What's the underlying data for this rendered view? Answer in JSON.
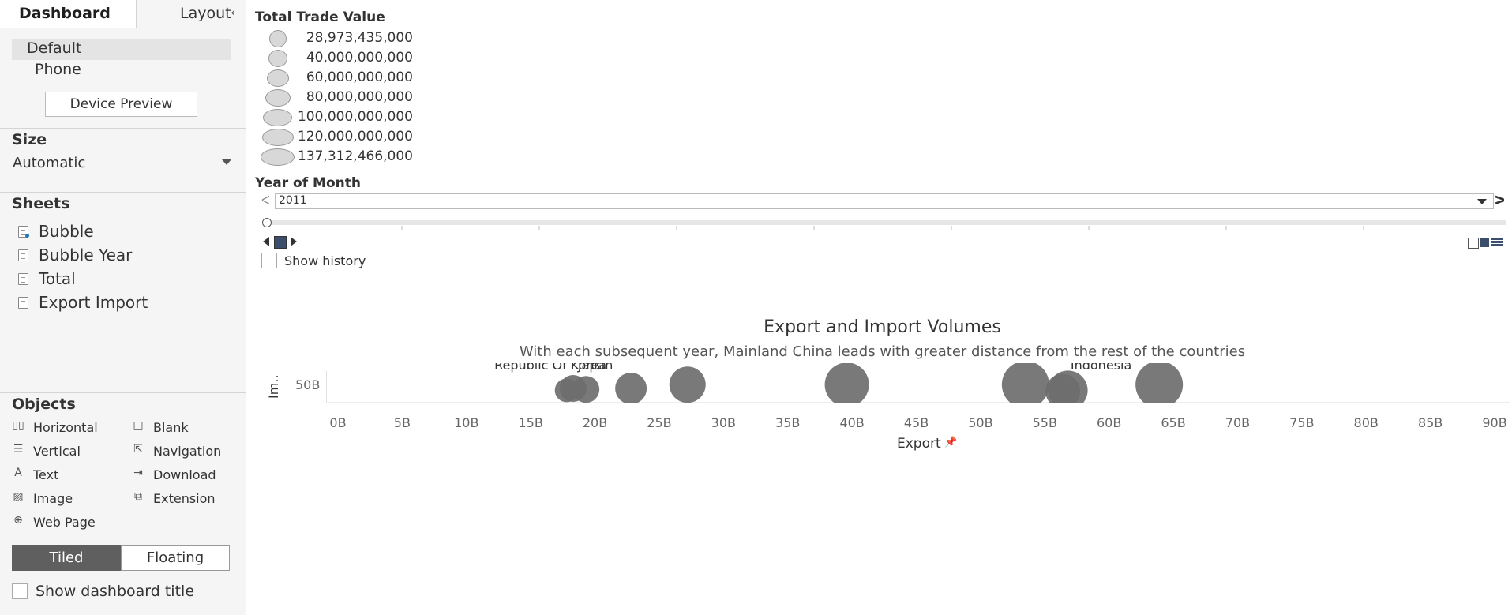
{
  "left_panel": {
    "tabs": {
      "dashboard": "Dashboard",
      "layout": "Layout"
    },
    "collapse_glyph": "‹",
    "device": {
      "default": "Default",
      "phone": "Phone",
      "preview_button": "Device Preview"
    },
    "size": {
      "heading": "Size",
      "value": "Automatic"
    },
    "sheets": {
      "heading": "Sheets",
      "items": [
        "Bubble",
        "Bubble Year",
        "Total",
        "Export Import"
      ]
    },
    "objects": {
      "heading": "Objects",
      "items": [
        {
          "label": "Horizontal",
          "icon": "horizontal-icon"
        },
        {
          "label": "Blank",
          "icon": "blank-icon"
        },
        {
          "label": "Vertical",
          "icon": "vertical-icon"
        },
        {
          "label": "Navigation",
          "icon": "navigation-icon"
        },
        {
          "label": "Text",
          "icon": "text-icon"
        },
        {
          "label": "Download",
          "icon": "download-icon"
        },
        {
          "label": "Image",
          "icon": "image-icon"
        },
        {
          "label": "Extension",
          "icon": "extension-icon"
        },
        {
          "label": "Web Page",
          "icon": "web-page-icon"
        }
      ]
    },
    "tiled_label": "Tiled",
    "floating_label": "Floating",
    "show_title_label": "Show dashboard title"
  },
  "legend": {
    "title": "Total Trade Value",
    "items": [
      "28,973,435,000",
      "40,000,000,000",
      "60,000,000,000",
      "80,000,000,000",
      "100,000,000,000",
      "120,000,000,000",
      "137,312,466,000"
    ]
  },
  "filter": {
    "title": "Year of Month",
    "value": "2011",
    "show_history_label": "Show history"
  },
  "chart_data": {
    "type": "scatter",
    "title": "Export and Import Volumes",
    "subtitle": "With each subsequent year, Mainland China leads with greater distance from the rest of the countries",
    "xlabel": "Export",
    "ylabel": "Im..",
    "xlim": [
      0,
      90
    ],
    "x_ticks": [
      "0B",
      "5B",
      "10B",
      "15B",
      "20B",
      "25B",
      "30B",
      "35B",
      "40B",
      "45B",
      "50B",
      "55B",
      "60B",
      "65B",
      "70B",
      "75B",
      "80B",
      "85B",
      "90B"
    ],
    "y_ticks": [
      "50B"
    ],
    "points": [
      {
        "x": 17.8,
        "y": 48,
        "size": 30,
        "label": ""
      },
      {
        "x": 18.3,
        "y": 50,
        "size": 34,
        "label": ""
      },
      {
        "x": 19.3,
        "y": 49,
        "size": 34,
        "label": "Republic Of Korea"
      },
      {
        "x": 22.8,
        "y": 50,
        "size": 40,
        "label": "Japan"
      },
      {
        "x": 27.2,
        "y": 54,
        "size": 46,
        "label": ""
      },
      {
        "x": 39.6,
        "y": 54,
        "size": 56,
        "label": ""
      },
      {
        "x": 53.5,
        "y": 54,
        "size": 60,
        "label": ""
      },
      {
        "x": 56.8,
        "y": 48,
        "size": 50,
        "label": "Indonesia"
      },
      {
        "x": 56.4,
        "y": 47,
        "size": 44,
        "label": ""
      },
      {
        "x": 63.9,
        "y": 54,
        "size": 60,
        "label": ""
      }
    ]
  },
  "colors": {
    "bubble": "#6e6e6e",
    "accent_dark": "#5f5f5f"
  }
}
